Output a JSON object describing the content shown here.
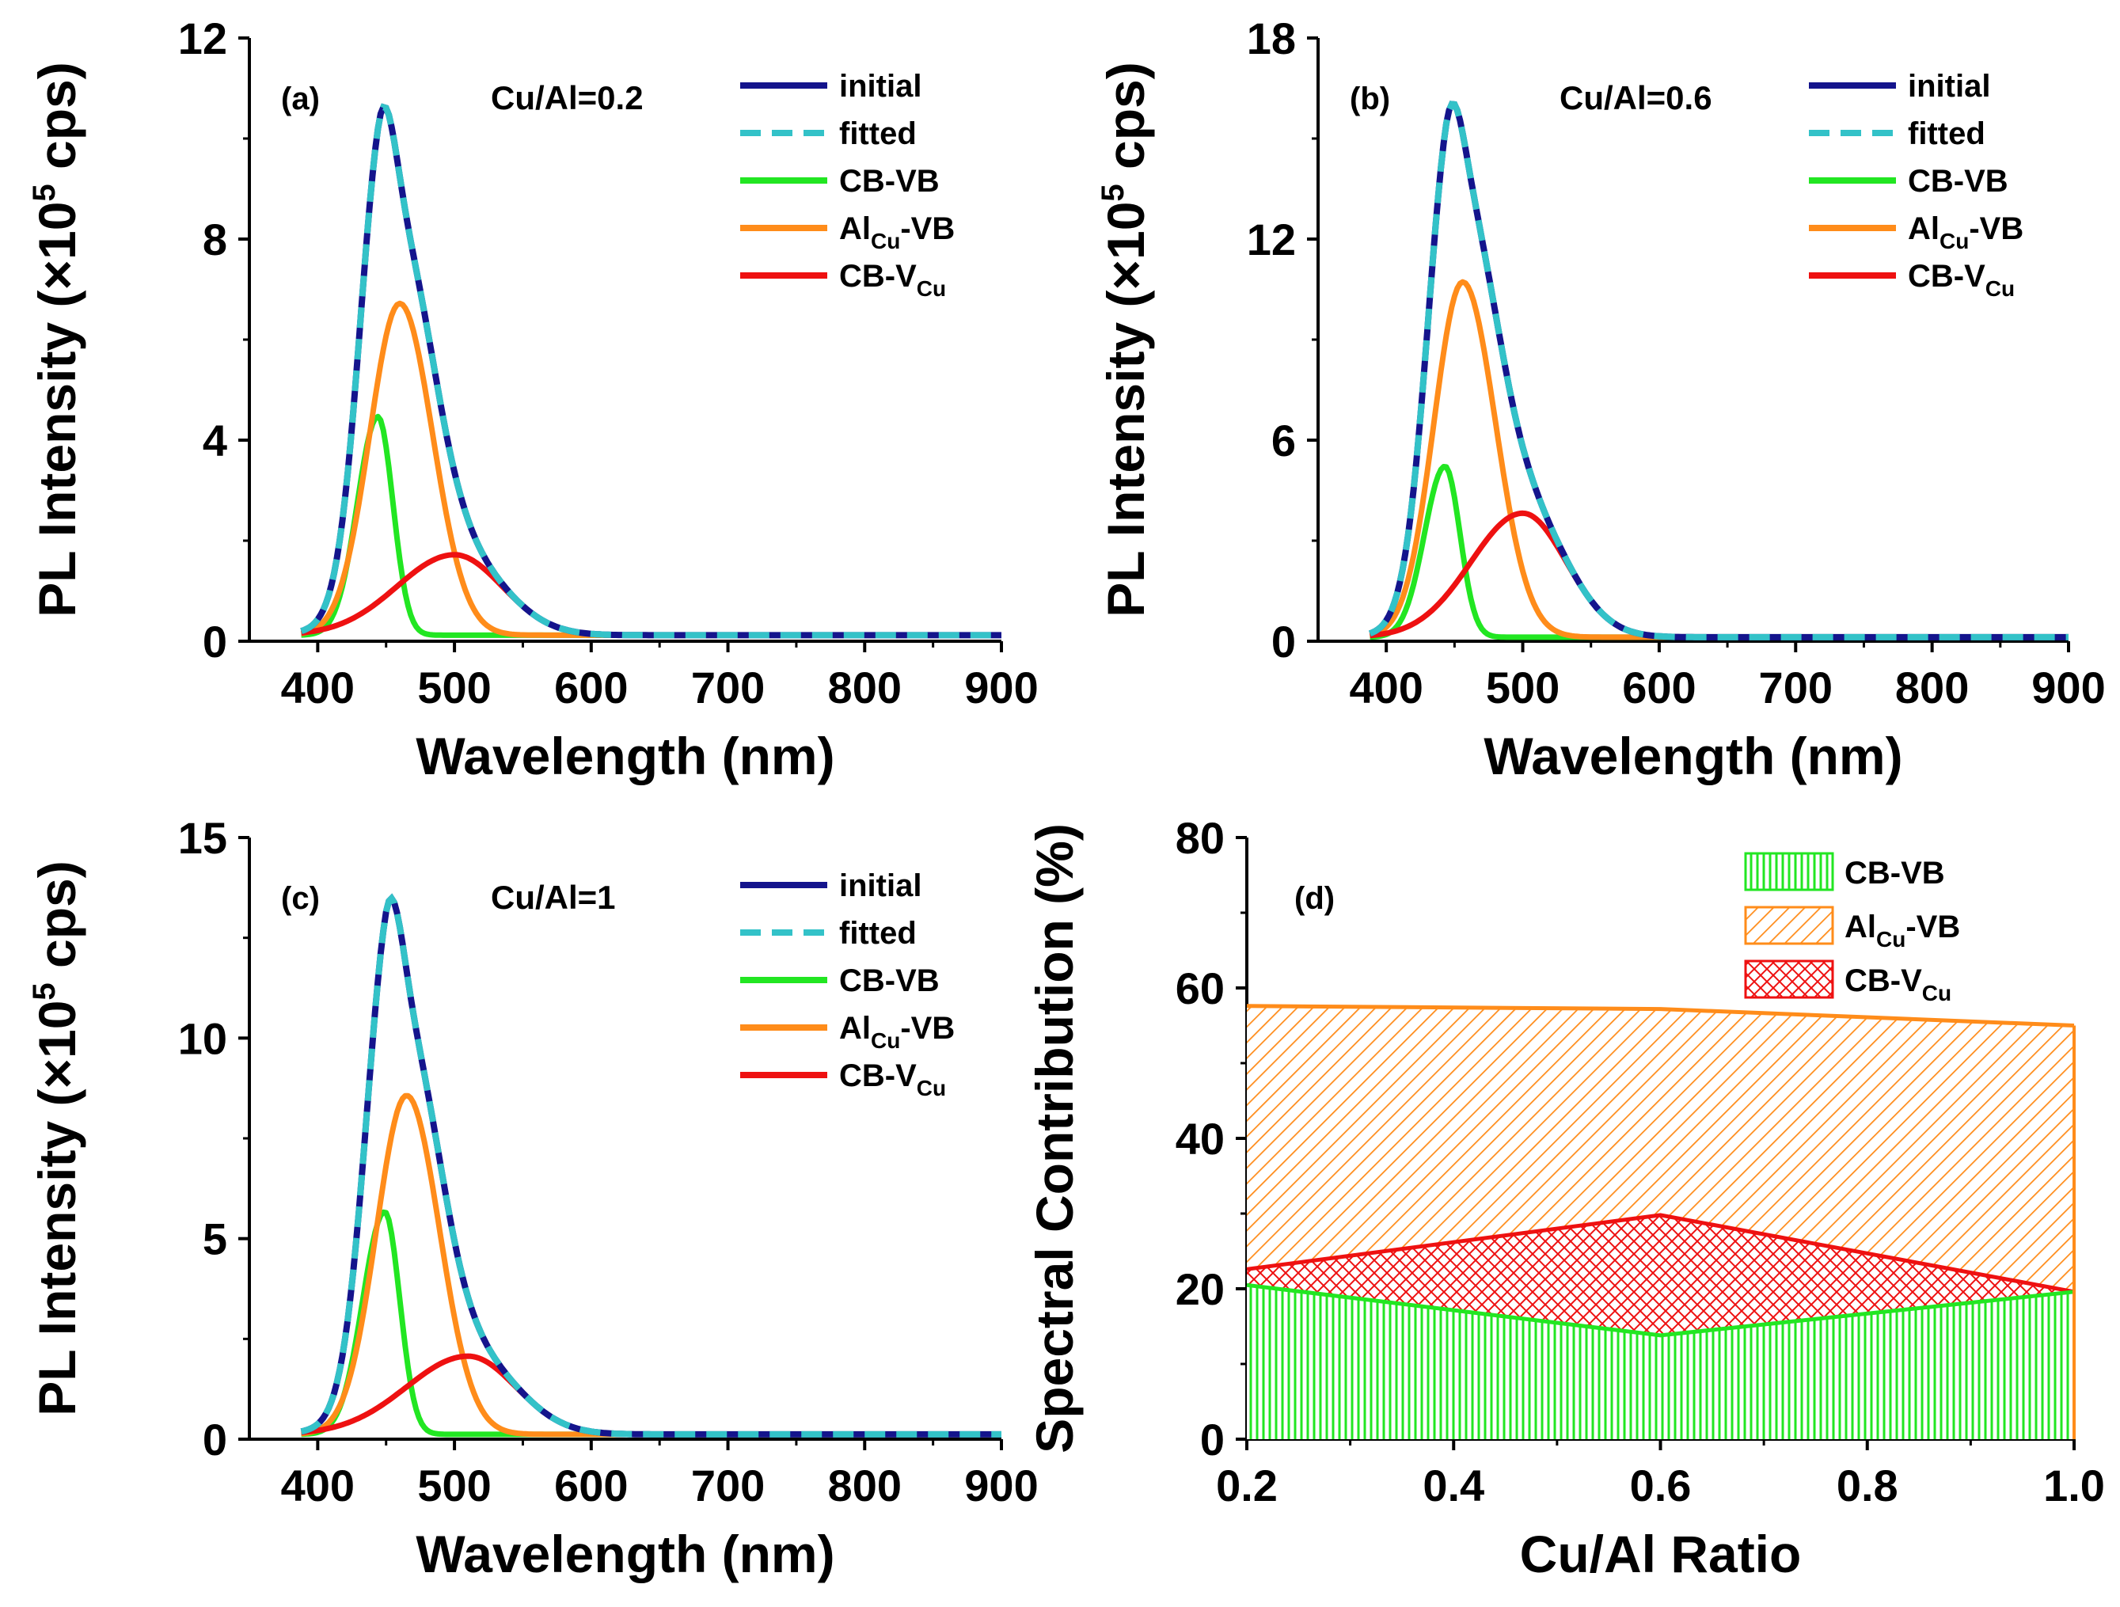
{
  "chart_data": [
    {
      "id": "a",
      "type": "line",
      "panel_label": "(a)",
      "ratio_label": "Cu/Al=0.2",
      "xlabel": "Wavelength (nm)",
      "ylabel": {
        "main": "PL Intensity (×10",
        "sup": "5",
        "tail": " cps)"
      },
      "xlim": [
        350,
        900
      ],
      "ylim": [
        0,
        12
      ],
      "xticks": [
        400,
        500,
        600,
        700,
        800,
        900
      ],
      "yticks": [
        0,
        4,
        8,
        12
      ],
      "series": [
        {
          "name": "CB-VB",
          "center": 444,
          "amplitude": 4.35,
          "sigma_left": 15,
          "sigma_right": 11,
          "color": "#22e622"
        },
        {
          "name": "Al_Cu-VB",
          "center": 460,
          "amplitude": 6.6,
          "sigma_left": 22,
          "sigma_right": 24,
          "color": "#ff8c1a"
        },
        {
          "name": "CB-V_Cu",
          "center": 500,
          "amplitude": 1.6,
          "sigma_left": 42,
          "sigma_right": 35,
          "color": "#ee1111"
        }
      ],
      "total": {
        "initial_color": "#14148c",
        "fitted_color": "#33c2c8"
      },
      "legend": [
        {
          "text": "initial",
          "sub": "",
          "tail": "",
          "color": "#14148c",
          "dash": false
        },
        {
          "text": "fitted",
          "sub": "",
          "tail": "",
          "color": "#33c2c8",
          "dash": true
        },
        {
          "text": "CB-VB",
          "sub": "",
          "tail": "",
          "color": "#22e622",
          "dash": false
        },
        {
          "text": "Al",
          "sub": "Cu",
          "tail": "-VB",
          "color": "#ff8c1a",
          "dash": false
        },
        {
          "text": "CB-V",
          "sub": "Cu",
          "tail": "",
          "color": "#ee1111",
          "dash": false
        }
      ]
    },
    {
      "id": "b",
      "type": "line",
      "panel_label": "(b)",
      "ratio_label": "Cu/Al=0.6",
      "xlabel": "Wavelength (nm)",
      "ylabel": {
        "main": "PL Intensity (×10",
        "sup": "5",
        "tail": " cps)"
      },
      "xlim": [
        350,
        900
      ],
      "ylim": [
        0,
        18
      ],
      "xticks": [
        400,
        500,
        600,
        700,
        800,
        900
      ],
      "yticks": [
        0,
        6,
        12,
        18
      ],
      "series": [
        {
          "name": "CB-VB",
          "center": 443,
          "amplitude": 5.1,
          "sigma_left": 15,
          "sigma_right": 11,
          "color": "#22e622"
        },
        {
          "name": "Al_Cu-VB",
          "center": 456,
          "amplitude": 10.6,
          "sigma_left": 21,
          "sigma_right": 24,
          "color": "#ff8c1a"
        },
        {
          "name": "CB-V_Cu",
          "center": 500,
          "amplitude": 3.7,
          "sigma_left": 38,
          "sigma_right": 32,
          "color": "#ee1111"
        }
      ],
      "total": {
        "initial_color": "#14148c",
        "fitted_color": "#33c2c8"
      },
      "legend": [
        {
          "text": "initial",
          "sub": "",
          "tail": "",
          "color": "#14148c",
          "dash": false
        },
        {
          "text": "fitted",
          "sub": "",
          "tail": "",
          "color": "#33c2c8",
          "dash": true
        },
        {
          "text": "CB-VB",
          "sub": "",
          "tail": "",
          "color": "#22e622",
          "dash": false
        },
        {
          "text": "Al",
          "sub": "Cu",
          "tail": "-VB",
          "color": "#ff8c1a",
          "dash": false
        },
        {
          "text": "CB-V",
          "sub": "Cu",
          "tail": "",
          "color": "#ee1111",
          "dash": false
        }
      ]
    },
    {
      "id": "c",
      "type": "line",
      "panel_label": "(c)",
      "ratio_label": "Cu/Al=1",
      "xlabel": "Wavelength (nm)",
      "ylabel": {
        "main": "PL Intensity (×10",
        "sup": "5",
        "tail": " cps)"
      },
      "xlim": [
        350,
        900
      ],
      "ylim": [
        0,
        15
      ],
      "xticks": [
        400,
        500,
        600,
        700,
        800,
        900
      ],
      "yticks": [
        0,
        5,
        10,
        15
      ],
      "series": [
        {
          "name": "CB-VB",
          "center": 449,
          "amplitude": 5.55,
          "sigma_left": 16,
          "sigma_right": 11,
          "color": "#22e622"
        },
        {
          "name": "Al_Cu-VB",
          "center": 465,
          "amplitude": 8.45,
          "sigma_left": 22,
          "sigma_right": 24,
          "color": "#ff8c1a"
        },
        {
          "name": "CB-V_Cu",
          "center": 510,
          "amplitude": 1.95,
          "sigma_left": 45,
          "sigma_right": 35,
          "color": "#ee1111"
        }
      ],
      "total": {
        "initial_color": "#14148c",
        "fitted_color": "#33c2c8"
      },
      "legend": [
        {
          "text": "initial",
          "sub": "",
          "tail": "",
          "color": "#14148c",
          "dash": false
        },
        {
          "text": "fitted",
          "sub": "",
          "tail": "",
          "color": "#33c2c8",
          "dash": true
        },
        {
          "text": "CB-VB",
          "sub": "",
          "tail": "",
          "color": "#22e622",
          "dash": false
        },
        {
          "text": "Al",
          "sub": "Cu",
          "tail": "-VB",
          "color": "#ff8c1a",
          "dash": false
        },
        {
          "text": "CB-V",
          "sub": "Cu",
          "tail": "",
          "color": "#ee1111",
          "dash": false
        }
      ]
    },
    {
      "id": "d",
      "type": "area",
      "panel_label": "(d)",
      "xlabel": "Cu/Al Ratio",
      "ylabel": {
        "main": "Spectral Contribution (%)",
        "sup": "",
        "tail": ""
      },
      "xlim": [
        0.2,
        1.0
      ],
      "ylim": [
        0,
        80
      ],
      "xticks": [
        0.2,
        0.4,
        0.6,
        0.8,
        1.0
      ],
      "yticks": [
        0,
        20,
        40,
        60,
        80
      ],
      "x": [
        0.2,
        0.6,
        1.0
      ],
      "series": [
        {
          "name": "CB-VB",
          "values": [
            20.5,
            13.8,
            19.6
          ],
          "color": "#22e622",
          "pattern": "vertical"
        },
        {
          "name": "CB-V_Cu",
          "values": [
            22.6,
            29.8,
            19.6
          ],
          "color": "#ee1111",
          "pattern": "cross"
        },
        {
          "name": "Al_Cu-VB",
          "values": [
            57.6,
            57.2,
            55.0
          ],
          "color": "#ff8c1a",
          "pattern": "diagonal"
        }
      ],
      "legend": [
        {
          "text": "CB-VB",
          "sub": "",
          "tail": "",
          "color": "#22e622",
          "pattern": "vertical"
        },
        {
          "text": "Al",
          "sub": "Cu",
          "tail": "-VB",
          "color": "#ff8c1a",
          "pattern": "diagonal"
        },
        {
          "text": "CB-V",
          "sub": "Cu",
          "tail": "",
          "color": "#ee1111",
          "pattern": "cross"
        }
      ]
    }
  ]
}
